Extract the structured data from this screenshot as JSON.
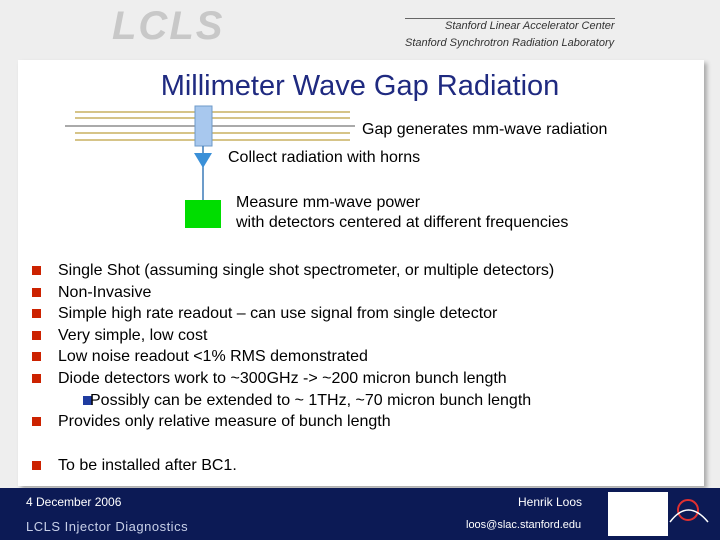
{
  "header": {
    "logo": "LCLS",
    "org1": "Stanford Linear Accelerator Center",
    "org2": "Stanford Synchrotron Radiation Laboratory"
  },
  "title": "Millimeter Wave Gap Radiation",
  "diagram": {
    "gap": "Gap generates mm-wave radiation",
    "horns": "Collect radiation with horns",
    "measure1": "Measure mm-wave power",
    "measure2": "with detectors centered at different frequencies"
  },
  "bullets": [
    "Single Shot (assuming single shot spectrometer, or multiple detectors)",
    "Non-Invasive",
    "Simple high rate readout – can use signal from single detector",
    "Very simple, low cost",
    "Low noise readout <1% RMS demonstrated",
    "Diode detectors work to ~300GHz -> ~200 micron bunch length"
  ],
  "sub_bullet": "Possibly can be extended to ~ 1THz, ~70 micron bunch length",
  "bullet_last": "Provides only relative measure of bunch length",
  "bullet_install": "To be installed after BC1.",
  "footer": {
    "date": "4 December 2006",
    "author": "Henrik Loos",
    "talk": "LCLS Injector Diagnostics",
    "email": "loos@slac.stanford.edu"
  }
}
